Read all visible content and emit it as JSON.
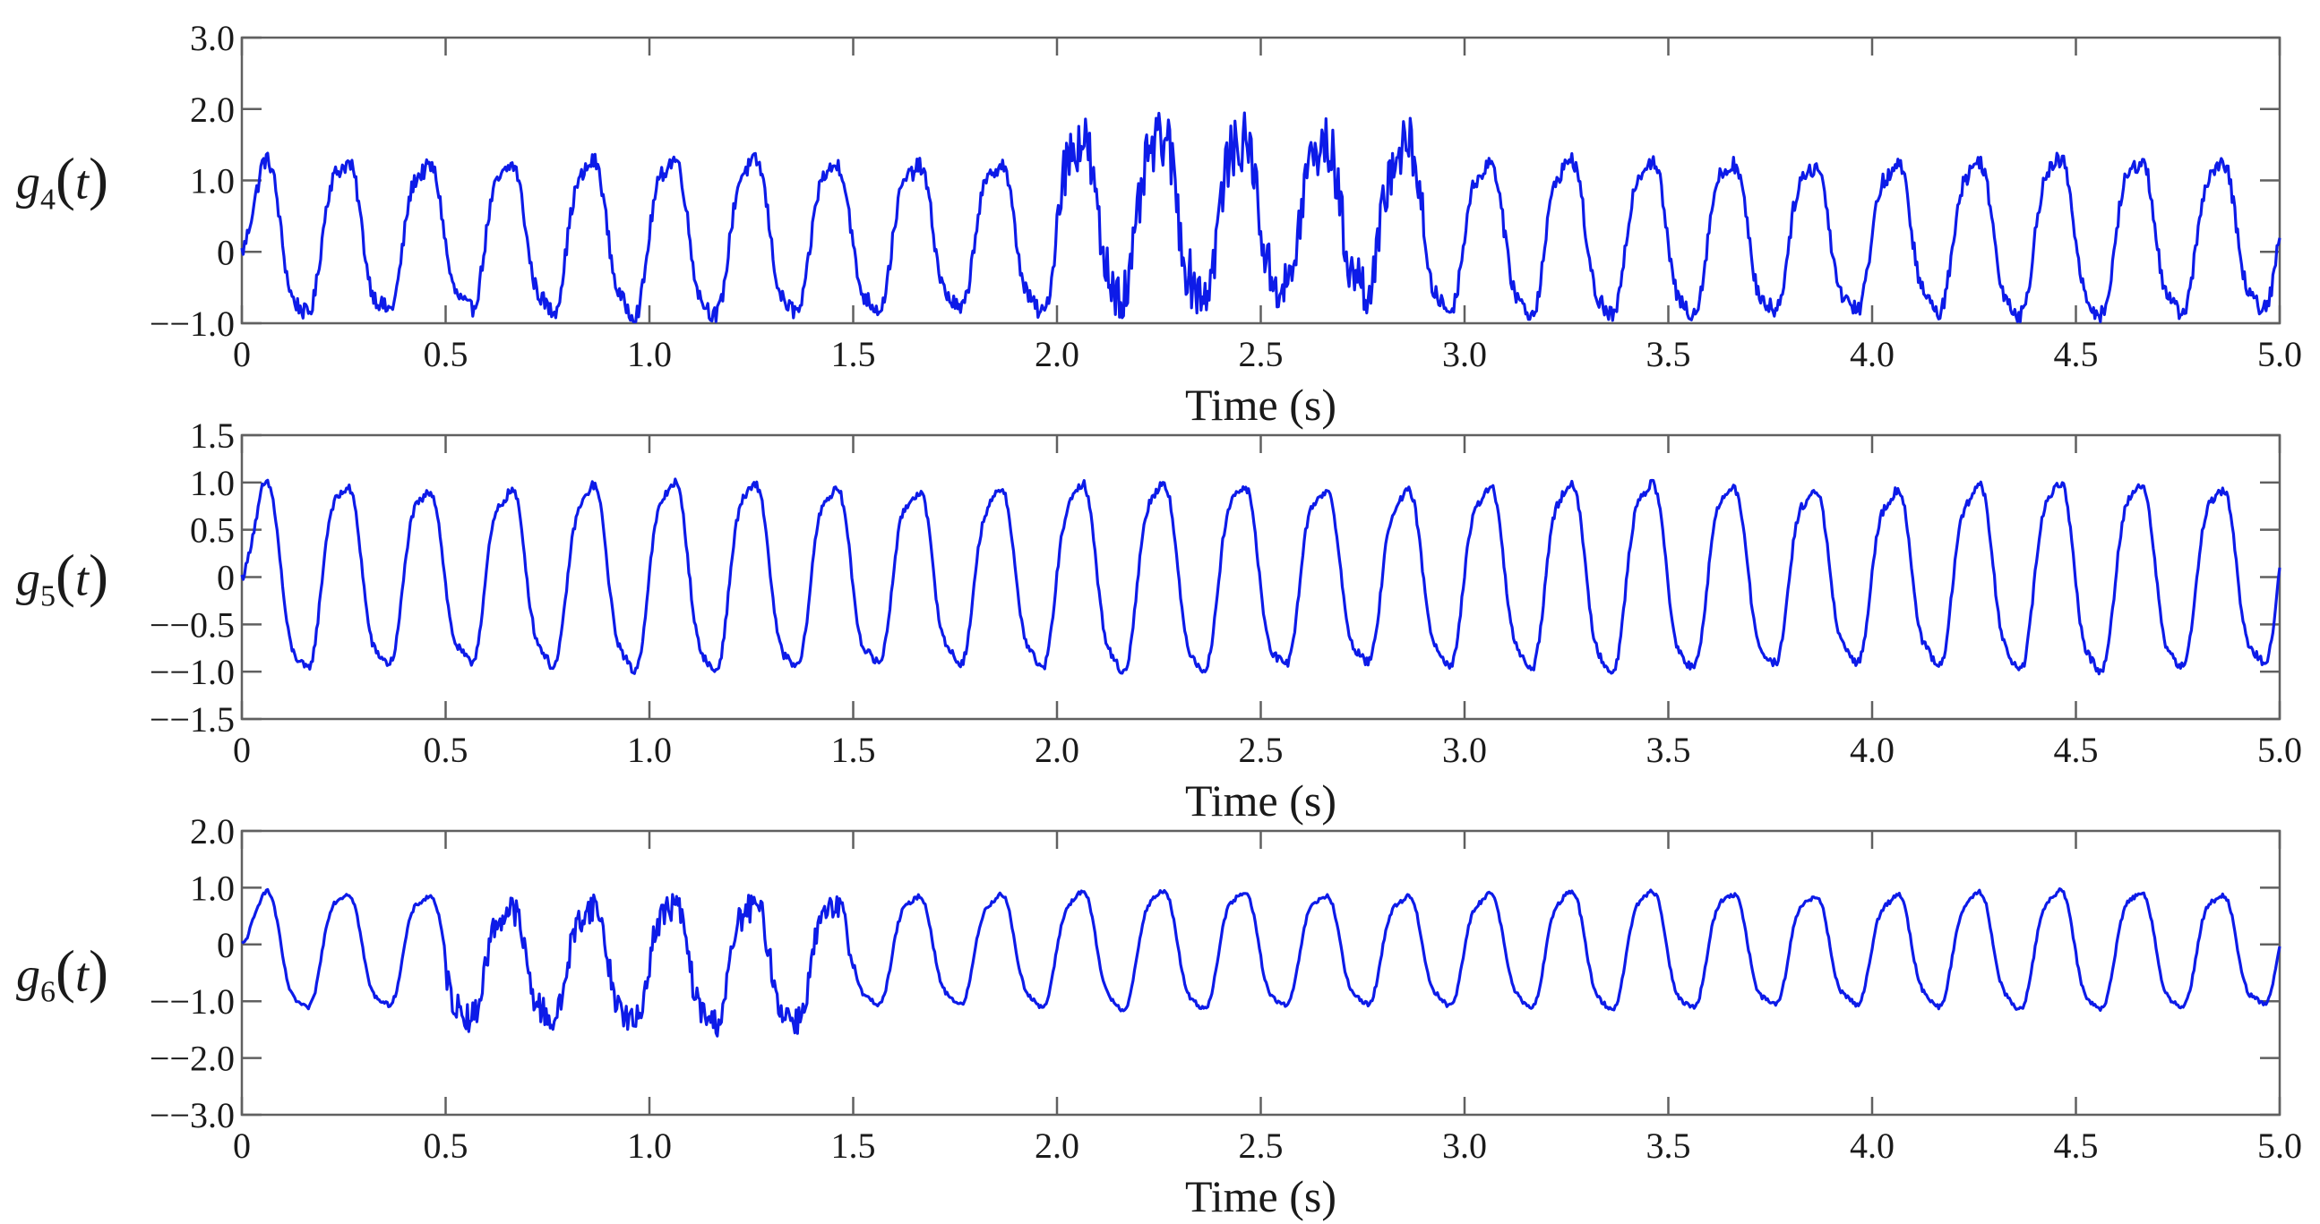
{
  "chart_data": [
    {
      "type": "line",
      "ylabel": "g4(t)",
      "ylabel_main": "g",
      "ylabel_sub": "4",
      "ylabel_arg": "t",
      "xlabel": "Time (s)",
      "xlim": [
        0,
        5.0
      ],
      "ylim": [
        -1.0,
        3.0
      ],
      "xticks": [
        "0",
        "0.5",
        "1.0",
        "1.5",
        "2.0",
        "2.5",
        "3.0",
        "3.5",
        "4.0",
        "4.5",
        "5.0"
      ],
      "yticks": [
        "3.0",
        "2.0",
        "1.0",
        "0",
        "−−1.0"
      ],
      "ytick_values": [
        3.0,
        2.0,
        1.0,
        0,
        -1.0
      ],
      "series": [
        {
          "color": "#0d1be8",
          "frequency_hz": 5,
          "amplitude": 1.1,
          "offset": 0.2,
          "noise": 0.12,
          "noisy_intervals": [
            [
              2.0,
              2.9
            ]
          ],
          "noisy_extra_offset": 0.5,
          "noisy_extra_noise": 0.28,
          "x": [
            0,
            0.05,
            0.15,
            0.25,
            0.35,
            0.45,
            0.55,
            0.65,
            0.75,
            0.85,
            0.95,
            1.05,
            1.15,
            1.25,
            1.35,
            1.45,
            1.55,
            1.65,
            1.75,
            1.85,
            1.95,
            2.05,
            2.15,
            2.25,
            2.35,
            2.45,
            2.55,
            2.65,
            2.75,
            2.85,
            2.95,
            3.05,
            3.15,
            3.25,
            3.35,
            3.45,
            3.55,
            3.65,
            3.75,
            3.85,
            3.95,
            4.05,
            4.15,
            4.25,
            4.35,
            4.45,
            4.55,
            4.65,
            4.75,
            4.85,
            4.95,
            5.0
          ],
          "y": [
            0.2,
            1.3,
            -0.9,
            1.3,
            -0.9,
            1.3,
            -0.9,
            1.3,
            -0.8,
            1.3,
            -0.9,
            1.3,
            -1.0,
            1.3,
            -0.7,
            1.3,
            -0.8,
            1.3,
            -0.8,
            1.3,
            -0.9,
            2.2,
            -0.4,
            1.7,
            -0.1,
            1.8,
            -0.6,
            1.8,
            -0.3,
            1.8,
            -0.8,
            1.2,
            -0.9,
            1.2,
            -1.0,
            1.3,
            -0.9,
            1.3,
            -0.9,
            1.3,
            -0.7,
            1.3,
            -0.8,
            1.3,
            -0.9,
            1.3,
            -0.9,
            1.3,
            -0.8,
            1.3,
            -0.9,
            0.0
          ]
        }
      ]
    },
    {
      "type": "line",
      "ylabel": "g5(t)",
      "ylabel_main": "g",
      "ylabel_sub": "5",
      "ylabel_arg": "t",
      "xlabel": "Time (s)",
      "xlim": [
        0,
        5.0
      ],
      "ylim": [
        -1.5,
        1.5
      ],
      "xticks": [
        "0",
        "0.5",
        "1.0",
        "1.5",
        "2.0",
        "2.5",
        "3.0",
        "3.5",
        "4.0",
        "4.5",
        "5.0"
      ],
      "yticks": [
        "1.5",
        "1.0",
        "0.5",
        "0",
        "−−0.5",
        "−−1.0",
        "−−1.5"
      ],
      "ytick_values": [
        1.5,
        1.0,
        0.5,
        0,
        -0.5,
        -1.0,
        -1.5
      ],
      "series": [
        {
          "color": "#0d1be8",
          "frequency_hz": 5,
          "amplitude": 1.0,
          "offset": 0,
          "noise": 0.045,
          "noisy_intervals": [],
          "x": [
            0,
            0.05,
            0.15,
            0.25,
            0.35,
            0.45,
            0.55,
            0.65,
            0.75,
            0.85,
            0.95,
            1.05,
            1.15,
            1.25,
            1.35,
            1.45,
            1.55,
            1.65,
            1.75,
            1.85,
            1.95,
            2.05,
            2.15,
            2.25,
            2.35,
            2.45,
            2.55,
            2.65,
            2.75,
            2.85,
            2.95,
            3.05,
            3.15,
            3.25,
            3.35,
            3.45,
            3.55,
            3.65,
            3.75,
            3.85,
            3.95,
            4.05,
            4.15,
            4.25,
            4.35,
            4.45,
            4.55,
            4.65,
            4.75,
            4.85,
            4.95,
            5.0
          ],
          "y": [
            0.0,
            1.0,
            -1.0,
            1.0,
            -1.0,
            1.0,
            -1.0,
            1.05,
            -1.0,
            1.0,
            -1.0,
            1.05,
            -1.0,
            1.0,
            -1.0,
            1.0,
            -1.0,
            1.0,
            -1.0,
            1.0,
            -1.05,
            1.0,
            -1.0,
            1.0,
            -1.0,
            1.0,
            -1.0,
            1.0,
            -1.0,
            1.0,
            -1.0,
            1.05,
            -1.0,
            1.0,
            -1.0,
            1.0,
            -1.0,
            1.0,
            -1.05,
            1.0,
            -1.0,
            1.0,
            -1.0,
            1.0,
            -1.0,
            1.05,
            -1.0,
            1.0,
            -1.0,
            1.0,
            -1.0,
            -0.2
          ]
        }
      ]
    },
    {
      "type": "line",
      "ylabel": "g6(t)",
      "ylabel_main": "g",
      "ylabel_sub": "6",
      "ylabel_arg": "t",
      "xlabel": "Time (s)",
      "xlim": [
        0,
        5.0
      ],
      "ylim": [
        -3.0,
        2.0
      ],
      "xticks": [
        "0",
        "0.5",
        "1.0",
        "1.5",
        "2.0",
        "2.5",
        "3.0",
        "3.5",
        "4.0",
        "4.5",
        "5.0"
      ],
      "yticks": [
        "2.0",
        "1.0",
        "0",
        "−−1.0",
        "−−2.0",
        "−−3.0"
      ],
      "ytick_values": [
        2.0,
        1.0,
        0,
        -1.0,
        -2.0,
        -3.0
      ],
      "series": [
        {
          "color": "#0d1be8",
          "frequency_hz": 5,
          "amplitude": 1.05,
          "offset": -0.1,
          "noise": 0.04,
          "noisy_intervals": [
            [
              0.5,
              1.5
            ]
          ],
          "noisy_extra_offset": -0.4,
          "noisy_extra_noise": 0.22,
          "x": [
            0,
            0.05,
            0.15,
            0.25,
            0.35,
            0.45,
            0.55,
            0.65,
            0.75,
            0.85,
            0.95,
            1.05,
            1.15,
            1.25,
            1.35,
            1.45,
            1.55,
            1.65,
            1.75,
            1.85,
            1.95,
            2.05,
            2.15,
            2.25,
            2.35,
            2.45,
            2.55,
            2.65,
            2.75,
            2.85,
            2.95,
            3.05,
            3.15,
            3.25,
            3.35,
            3.45,
            3.55,
            3.65,
            3.75,
            3.85,
            3.95,
            4.05,
            4.15,
            4.25,
            4.35,
            4.45,
            4.55,
            4.65,
            4.75,
            4.85,
            4.95,
            5.0
          ],
          "y": [
            0.0,
            1.0,
            -1.2,
            0.9,
            -1.2,
            1.1,
            -1.9,
            0.8,
            -1.8,
            0.7,
            -1.7,
            1.0,
            -2.1,
            0.9,
            -2.0,
            1.4,
            -1.0,
            1.0,
            -0.9,
            1.3,
            -1.2,
            1.0,
            -1.2,
            0.9,
            -0.9,
            1.1,
            -1.1,
            1.2,
            -1.0,
            1.0,
            -1.2,
            1.0,
            -1.1,
            1.1,
            -1.2,
            1.1,
            -1.2,
            1.3,
            -1.0,
            1.1,
            -1.2,
            1.2,
            -1.0,
            1.1,
            -1.0,
            1.2,
            -1.1,
            1.1,
            -1.1,
            1.1,
            -1.1,
            -0.2
          ]
        }
      ]
    }
  ]
}
